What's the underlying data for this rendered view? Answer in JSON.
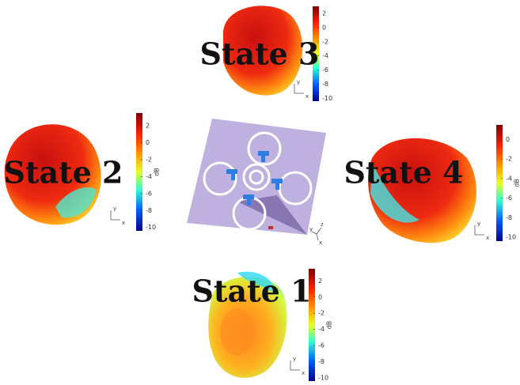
{
  "panels": [
    {
      "label": "State 3",
      "colorbar": {
        "ticks": [
          2,
          0,
          -2,
          -4,
          -6,
          -8,
          -10
        ]
      },
      "axis_labels": [
        "y",
        "x"
      ]
    },
    {
      "label": "State 2",
      "colorbar": {
        "ticks": [
          2,
          0,
          -2,
          -4,
          -6,
          -8,
          -10
        ],
        "unit": "dB"
      },
      "axis_labels": [
        "y",
        "x"
      ]
    },
    {
      "label": "State 4",
      "colorbar": {
        "ticks": [
          0,
          -2,
          -4,
          -6,
          -8,
          -10
        ],
        "unit": "dB"
      },
      "axis_labels": [
        "y",
        "x"
      ]
    },
    {
      "label": "State 1",
      "colorbar": {
        "ticks": [
          2,
          0,
          -2,
          -4,
          -6,
          -8,
          -10
        ],
        "unit": "dB"
      },
      "axis_labels": [
        "y",
        "x"
      ]
    }
  ],
  "center": {
    "axis_labels": [
      "z",
      "y",
      "x"
    ]
  }
}
